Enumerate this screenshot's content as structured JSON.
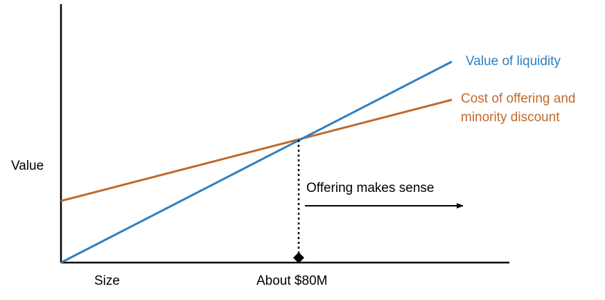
{
  "colors": {
    "liquidity": "#2e7fbf",
    "cost": "#c0692c",
    "axis": "#000000"
  },
  "labels": {
    "y_axis": "Value",
    "x_axis": "Size",
    "crossover": "About $80M",
    "liquidity_line": "Value of liquidity",
    "cost_line_1": "Cost of offering and",
    "cost_line_2": "minority discount",
    "offering_note": "Offering makes sense"
  },
  "icons": {
    "arrow": "right-arrow-icon",
    "marker": "diamond-marker-icon"
  }
}
